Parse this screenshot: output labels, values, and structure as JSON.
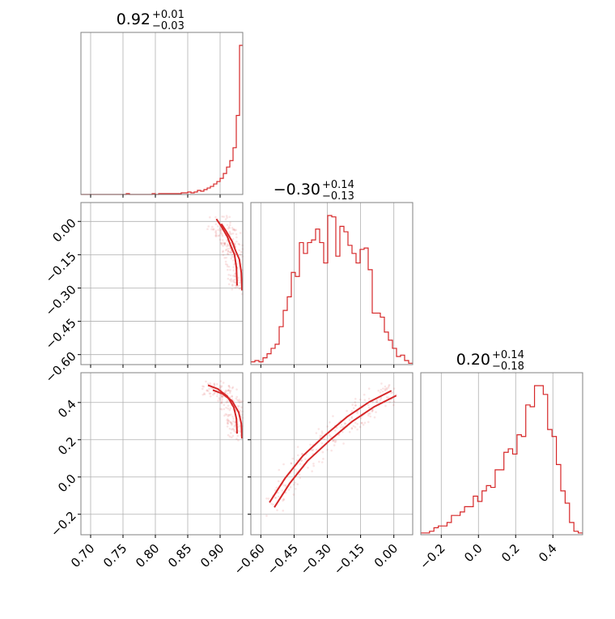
{
  "chart_data": {
    "type": "corner",
    "color": "#d62728",
    "titles": [
      {
        "value": "0.92",
        "plus": "+0.01",
        "minus": "−0.03"
      },
      {
        "value": "−0.30",
        "plus": "+0.14",
        "minus": "−0.13"
      },
      {
        "value": "0.20",
        "plus": "+0.14",
        "minus": "−0.18"
      }
    ],
    "grid": true,
    "params": [
      {
        "range": [
          0.685,
          0.935
        ],
        "ticks": [
          0.7,
          0.75,
          0.8,
          0.85,
          0.9
        ],
        "tick_labels": [
          "0.70",
          "0.75",
          "0.80",
          "0.85",
          "0.90"
        ]
      },
      {
        "range": [
          -0.645,
          0.085
        ],
        "ticks": [
          -0.6,
          -0.45,
          -0.3,
          -0.15,
          0.0
        ],
        "tick_labels": [
          "−0.60",
          "−0.45",
          "−0.30",
          "−0.15",
          "0.00"
        ]
      },
      {
        "range": [
          -0.31,
          0.56
        ],
        "ticks": [
          -0.2,
          0.0,
          0.2,
          0.4
        ],
        "tick_labels": [
          "−0.2",
          "0.0",
          "0.2",
          "0.4"
        ]
      }
    ],
    "histograms": [
      {
        "param": 0,
        "bin_edges_range": [
          0.685,
          0.935
        ],
        "counts": [
          0,
          0,
          0,
          0,
          0,
          0,
          0,
          0,
          0,
          0,
          0,
          0,
          0,
          0,
          1,
          0,
          0,
          0,
          0,
          0,
          0,
          0,
          1,
          0,
          1,
          1,
          1,
          1,
          1,
          1,
          1,
          2,
          2,
          3,
          2,
          3,
          5,
          4,
          6,
          8,
          10,
          13,
          16,
          20,
          26,
          34,
          42,
          58,
          98,
          185
        ]
      },
      {
        "param": 1,
        "bin_edges_range": [
          -0.645,
          0.085
        ],
        "counts": [
          2,
          3,
          2,
          5,
          8,
          12,
          15,
          28,
          40,
          50,
          68,
          65,
          90,
          82,
          90,
          92,
          100,
          90,
          75,
          110,
          109,
          80,
          102,
          98,
          88,
          82,
          75,
          85,
          86,
          70,
          38,
          38,
          35,
          24,
          18,
          12,
          6,
          7,
          3,
          1
        ]
      },
      {
        "param": 2,
        "bin_edges_range": [
          -0.31,
          0.56
        ],
        "counts": [
          1,
          1,
          2,
          4,
          5,
          5,
          7,
          11,
          11,
          13,
          16,
          16,
          22,
          19,
          25,
          28,
          27,
          37,
          37,
          47,
          49,
          46,
          57,
          56,
          74,
          73,
          85,
          85,
          80,
          60,
          56,
          40,
          25,
          18,
          7,
          2,
          1
        ]
      }
    ],
    "credible_regions": [
      {
        "x_param": 0,
        "y_param": 1,
        "shape": "crescent",
        "points": [
          [
            0.93,
            -0.3
          ],
          [
            0.929,
            -0.22
          ],
          [
            0.926,
            -0.16
          ],
          [
            0.92,
            -0.12
          ],
          [
            0.915,
            -0.08
          ],
          [
            0.905,
            -0.03
          ],
          [
            0.898,
            0.0
          ]
        ],
        "width": 0.012
      },
      {
        "x_param": 0,
        "y_param": 2,
        "shape": "crescent",
        "points": [
          [
            0.93,
            0.22
          ],
          [
            0.929,
            0.3
          ],
          [
            0.925,
            0.36
          ],
          [
            0.915,
            0.42
          ],
          [
            0.9,
            0.46
          ],
          [
            0.885,
            0.48
          ]
        ],
        "width": 0.012
      },
      {
        "x_param": 1,
        "y_param": 2,
        "shape": "band",
        "points": [
          [
            -0.55,
            -0.15
          ],
          [
            -0.48,
            -0.02
          ],
          [
            -0.4,
            0.1
          ],
          [
            -0.3,
            0.21
          ],
          [
            -0.2,
            0.31
          ],
          [
            -0.1,
            0.39
          ],
          [
            0.0,
            0.45
          ]
        ],
        "width": 0.025
      }
    ]
  }
}
